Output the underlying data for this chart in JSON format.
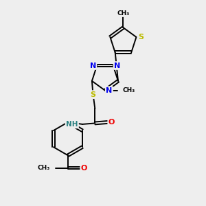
{
  "bg_color": "#eeeeee",
  "bond_color": "#000000",
  "atom_colors": {
    "N": "#0000ee",
    "O": "#ee0000",
    "S": "#bbbb00",
    "C": "#000000",
    "H": "#2a8080"
  },
  "figsize": [
    3.0,
    3.0
  ],
  "dpi": 100,
  "xlim": [
    0,
    10
  ],
  "ylim": [
    0,
    10
  ]
}
